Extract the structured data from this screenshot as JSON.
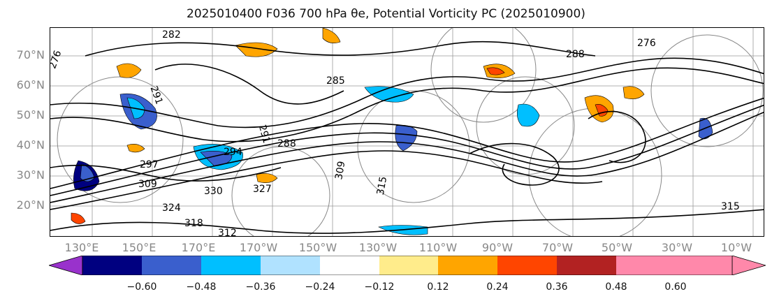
{
  "title": "2025010400 F036 700 hPa θe, Potential Vorticity PC (2025010900)",
  "y_axis": {
    "labels": [
      "70°N",
      "60°N",
      "50°N",
      "40°N",
      "30°N",
      "20°N"
    ]
  },
  "x_axis": {
    "labels": [
      "130°E",
      "150°E",
      "170°E",
      "170°W",
      "150°W",
      "130°W",
      "110°W",
      "90°W",
      "70°W",
      "50°W",
      "30°W",
      "10°W"
    ]
  },
  "contour_labels": [
    "282",
    "276",
    "288",
    "276",
    "291",
    "285",
    "291",
    "288",
    "294",
    "297",
    "309",
    "315",
    "330",
    "324",
    "318",
    "312",
    "327",
    "309",
    "315"
  ],
  "colorbar": {
    "ticks": [
      "−0.60",
      "−0.48",
      "−0.36",
      "−0.24",
      "−0.12",
      "0.12",
      "0.24",
      "0.36",
      "0.48",
      "0.60"
    ],
    "colors": [
      "#9932cc",
      "#000080",
      "#3a5fcd",
      "#00bfff",
      "#b0e2ff",
      "#ffffff",
      "#ffec8b",
      "#ffa500",
      "#ff4500",
      "#b22222",
      "#ff88aa"
    ]
  }
}
